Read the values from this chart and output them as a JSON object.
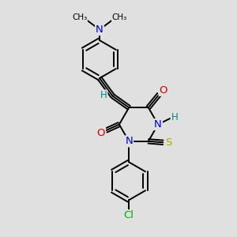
{
  "background_color": "#e0e0e0",
  "bond_color": "#000000",
  "N_color": "#0000cc",
  "O_color": "#cc0000",
  "S_color": "#aaaa00",
  "Cl_color": "#00aa00",
  "H_color": "#008888",
  "label_fontsize": 8.5,
  "line_width": 1.4,
  "xlim": [
    0,
    10
  ],
  "ylim": [
    0,
    10
  ]
}
